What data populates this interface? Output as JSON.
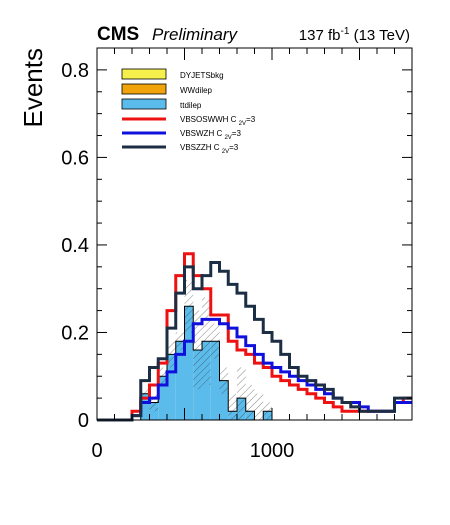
{
  "header": {
    "experiment": "CMS",
    "status": "Preliminary",
    "lumi": "137 fb",
    "lumi_exp": "-1",
    "energy": " (13 TeV)"
  },
  "chart_data": {
    "type": "histogram",
    "ylabel": "Events",
    "xlabel": "",
    "xlim": [
      0,
      1800
    ],
    "ylim": [
      0,
      0.85
    ],
    "xticks": [
      0,
      1000
    ],
    "yticks": [
      0,
      0.2,
      0.4,
      0.6,
      0.8
    ],
    "legend_position": "top-left",
    "bin_edges": [
      0,
      50,
      100,
      150,
      200,
      250,
      300,
      350,
      400,
      450,
      500,
      550,
      600,
      650,
      700,
      750,
      800,
      850,
      900,
      950,
      1000,
      1050,
      1100,
      1150,
      1200,
      1250,
      1300,
      1350,
      1400,
      1450,
      1500,
      1550,
      1600,
      1650,
      1700,
      1750,
      1800
    ],
    "stack": [
      {
        "name": "DYJETSbkg",
        "color": "#f5f04c",
        "values": [
          0,
          0,
          0,
          0,
          0,
          0,
          0,
          0,
          0,
          0,
          0,
          0,
          0,
          0,
          0,
          0,
          0,
          0,
          0,
          0,
          0,
          0,
          0,
          0,
          0,
          0,
          0,
          0,
          0,
          0,
          0,
          0,
          0,
          0,
          0,
          0
        ]
      },
      {
        "name": "WWdilep",
        "color": "#f0a30a",
        "values": [
          0,
          0,
          0,
          0,
          0,
          0,
          0,
          0,
          0,
          0,
          0,
          0,
          0,
          0,
          0,
          0,
          0,
          0,
          0,
          0,
          0,
          0,
          0,
          0,
          0,
          0,
          0,
          0,
          0,
          0,
          0,
          0,
          0,
          0,
          0,
          0
        ]
      },
      {
        "name": "ttdilep",
        "color": "#5bbcec",
        "values": [
          0,
          0,
          0,
          0,
          0,
          0.06,
          0.04,
          0.1,
          0.15,
          0.18,
          0.26,
          0.16,
          0.18,
          0.18,
          0.09,
          0.02,
          0.05,
          0.02,
          0,
          0.02,
          0,
          0,
          0,
          0,
          0,
          0,
          0,
          0,
          0,
          0,
          0,
          0,
          0,
          0,
          0,
          0
        ]
      }
    ],
    "uncertainty_top": [
      0,
      0,
      0,
      0,
      0,
      0.07,
      0.06,
      0.12,
      0.18,
      0.2,
      0.32,
      0.25,
      0.28,
      0.22,
      0.12,
      0.06,
      0.12,
      0.08,
      0.06,
      0.04,
      0,
      0,
      0,
      0,
      0,
      0,
      0,
      0,
      0,
      0,
      0,
      0,
      0,
      0,
      0,
      0
    ],
    "signals": [
      {
        "name": "VBSOSWWH C",
        "sub": "2V",
        "suffix": "=3",
        "color": "#ee1111",
        "values": [
          0,
          0,
          0,
          0,
          0.02,
          0.05,
          0.08,
          0.13,
          0.25,
          0.33,
          0.38,
          0.33,
          0.3,
          0.24,
          0.24,
          0.18,
          0.16,
          0.15,
          0.13,
          0.12,
          0.1,
          0.09,
          0.08,
          0.07,
          0.06,
          0.05,
          0.04,
          0.03,
          0.02,
          0.02,
          0.02,
          0.02,
          0.02,
          0.02,
          0.04,
          0.05
        ]
      },
      {
        "name": "VBSWZH C",
        "sub": "2V",
        "suffix": "=3",
        "color": "#1010dd",
        "values": [
          0,
          0,
          0,
          0,
          0.01,
          0.04,
          0.05,
          0.08,
          0.11,
          0.15,
          0.18,
          0.22,
          0.23,
          0.23,
          0.22,
          0.21,
          0.19,
          0.17,
          0.15,
          0.13,
          0.12,
          0.11,
          0.1,
          0.09,
          0.08,
          0.07,
          0.06,
          0.05,
          0.04,
          0.04,
          0.03,
          0.02,
          0.02,
          0.02,
          0.04,
          0.04
        ]
      },
      {
        "name": "VBSZZH C",
        "sub": "2V",
        "suffix": "=3",
        "color": "#1c2e44",
        "values": [
          0,
          0,
          0,
          0,
          0.01,
          0.09,
          0.12,
          0.14,
          0.21,
          0.29,
          0.35,
          0.3,
          0.33,
          0.36,
          0.34,
          0.31,
          0.29,
          0.26,
          0.23,
          0.2,
          0.18,
          0.15,
          0.12,
          0.1,
          0.09,
          0.08,
          0.07,
          0.05,
          0.04,
          0.03,
          0.02,
          0.02,
          0.02,
          0.02,
          0.05,
          0.05
        ]
      }
    ]
  }
}
